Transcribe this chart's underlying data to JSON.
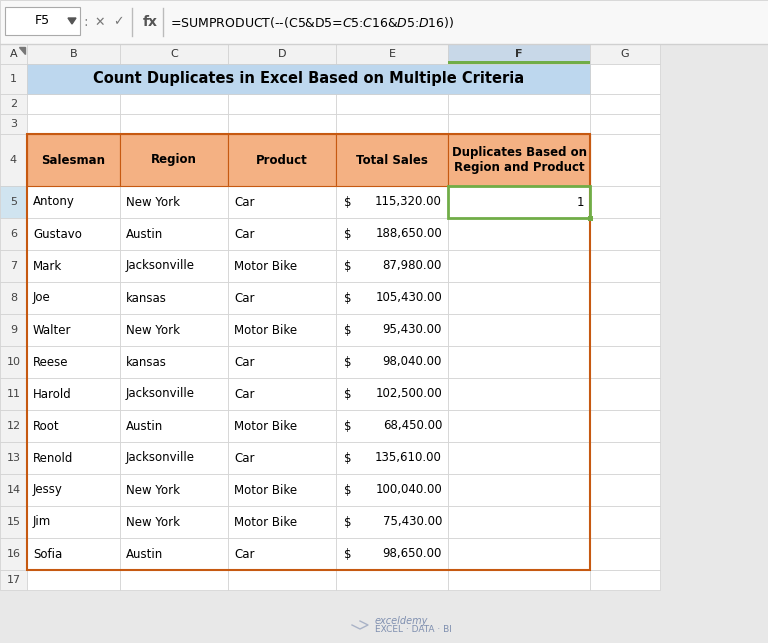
{
  "title": "Count Duplicates in Excel Based on Multiple Criteria",
  "formula_bar_cell": "F5",
  "formula_bar_text": "=SUMPRODUCT(--(C5&D5=$C$5:$C$16&$D$5:$D$16))",
  "col_letters": [
    "A",
    "B",
    "C",
    "D",
    "E",
    "F",
    "G"
  ],
  "row_numbers": [
    "1",
    "2",
    "3",
    "4",
    "5",
    "6",
    "7",
    "8",
    "9",
    "10",
    "11",
    "12",
    "13",
    "14",
    "15",
    "16",
    "17"
  ],
  "headers": [
    "Salesman",
    "Region",
    "Product",
    "Total Sales",
    "Duplicates Based on\nRegion and Product"
  ],
  "data": [
    [
      "Antony",
      "New York",
      "Car",
      "115,320.00",
      "1"
    ],
    [
      "Gustavo",
      "Austin",
      "Car",
      "188,650.00",
      ""
    ],
    [
      "Mark",
      "Jacksonville",
      "Motor Bike",
      "87,980.00",
      ""
    ],
    [
      "Joe",
      "kansas",
      "Car",
      "105,430.00",
      ""
    ],
    [
      "Walter",
      "New York",
      "Motor Bike",
      "95,430.00",
      ""
    ],
    [
      "Reese",
      "kansas",
      "Car",
      "98,040.00",
      ""
    ],
    [
      "Harold",
      "Jacksonville",
      "Car",
      "102,500.00",
      ""
    ],
    [
      "Root",
      "Austin",
      "Motor Bike",
      "68,450.00",
      ""
    ],
    [
      "Renold",
      "Jacksonville",
      "Car",
      "135,610.00",
      ""
    ],
    [
      "Jessy",
      "New York",
      "Motor Bike",
      "100,040.00",
      ""
    ],
    [
      "Jim",
      "New York",
      "Motor Bike",
      "75,430.00",
      ""
    ],
    [
      "Sofia",
      "Austin",
      "Car",
      "98,650.00",
      ""
    ]
  ],
  "header_fill": "#F4B183",
  "title_fill": "#BDD7EE",
  "outer_bg": "#E8E8E8",
  "white": "#FFFFFF",
  "grid_line": "#D0D0D0",
  "header_border": "#C65911",
  "selected_border": "#70AD47",
  "col_header_bg": "#F2F2F2",
  "col_header_sel": "#C8D8E8",
  "row_header_sel": "#D0E4F0",
  "formula_bar_bg": "#F8F8F8",
  "watermark_color": "#8090B0",
  "watermark_line1": "exceldemy",
  "watermark_line2": "EXCEL · DATA · BI"
}
